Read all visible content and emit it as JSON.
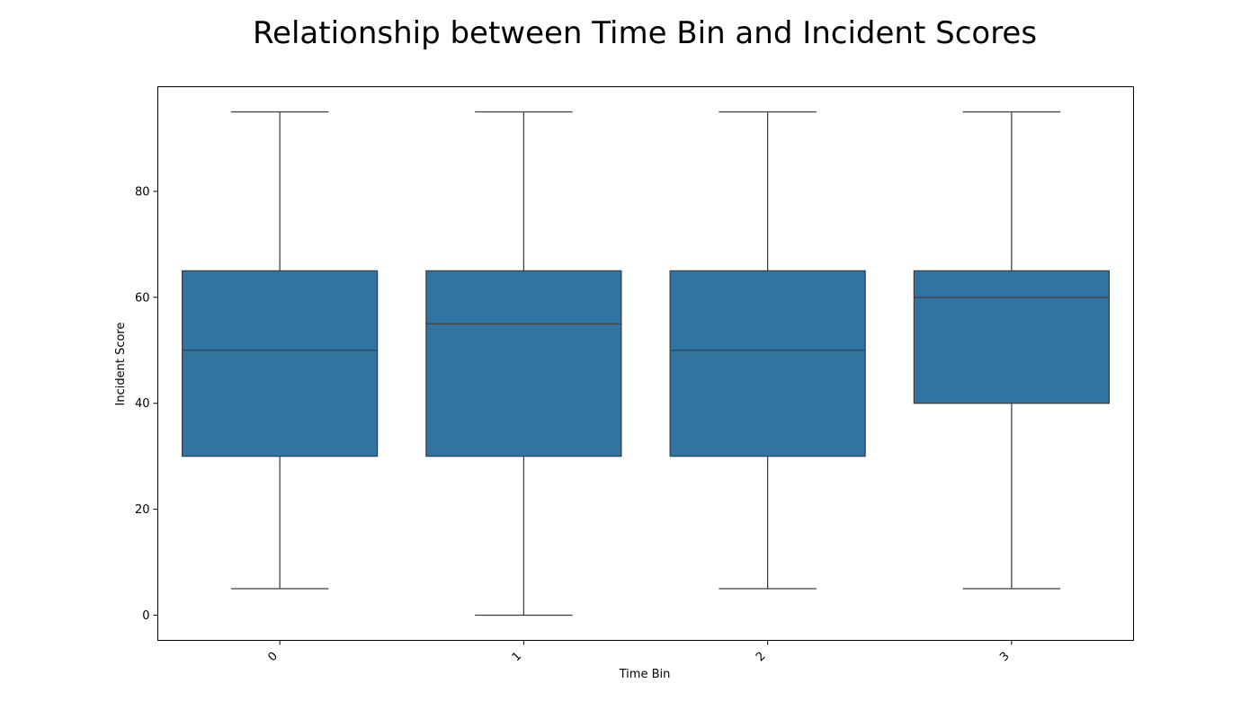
{
  "chart_data": {
    "type": "box",
    "title": "Relationship between Time Bin and Incident Scores",
    "xlabel": "Time Bin",
    "ylabel": "Incident Score",
    "categories": [
      "0",
      "1",
      "2",
      "3"
    ],
    "boxes": [
      {
        "category": "0",
        "whisker_low": 5,
        "q1": 30,
        "median": 50,
        "q3": 65,
        "whisker_high": 95
      },
      {
        "category": "1",
        "whisker_low": 0,
        "q1": 30,
        "median": 55,
        "q3": 65,
        "whisker_high": 95
      },
      {
        "category": "2",
        "whisker_low": 5,
        "q1": 30,
        "median": 50,
        "q3": 65,
        "whisker_high": 95
      },
      {
        "category": "3",
        "whisker_low": 5,
        "q1": 40,
        "median": 60,
        "q3": 65,
        "whisker_high": 95
      }
    ],
    "yticks": [
      0,
      20,
      40,
      60,
      80
    ],
    "ylim": [
      -4.75,
      99.75
    ],
    "grid": false,
    "legend": "none",
    "box_color": "#3274a1",
    "line_color": "#3d3d3d"
  }
}
